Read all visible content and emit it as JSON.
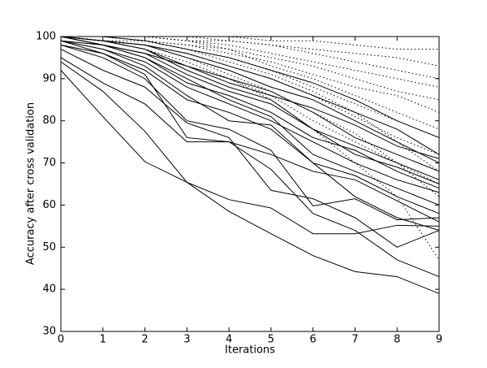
{
  "chart_data": {
    "type": "line",
    "xlabel": "Iterations",
    "ylabel": "Accuracy after cross validation",
    "x": [
      0,
      1,
      2,
      3,
      4,
      5,
      6,
      7,
      8,
      9
    ],
    "xlim": [
      0,
      9
    ],
    "xticks": [
      0,
      1,
      2,
      3,
      4,
      5,
      6,
      7,
      8,
      9
    ],
    "ylim": [
      30,
      100
    ],
    "yticks": [
      30,
      40,
      50,
      60,
      70,
      80,
      90,
      100
    ],
    "grid": false,
    "series": [
      {
        "color": "#000000",
        "linestyle": "solid",
        "values": [
          92,
          81,
          70.3,
          65.4,
          58.5,
          53.2,
          48,
          44.2,
          43,
          39
        ]
      },
      {
        "color": "#000000",
        "linestyle": "solid",
        "values": [
          94,
          87,
          77.5,
          65.4,
          61.3,
          59.3,
          53.2,
          53.2,
          55.2,
          55
        ]
      },
      {
        "color": "#000000",
        "linestyle": "solid",
        "values": [
          95,
          89,
          84,
          75,
          75,
          68.5,
          58,
          54,
          47,
          43
        ]
      },
      {
        "color": "#000000",
        "linestyle": "solid",
        "values": [
          97,
          92,
          88,
          79.5,
          76,
          63.5,
          61.5,
          57,
          50,
          54
        ]
      },
      {
        "color": "#000000",
        "linestyle": "solid",
        "values": [
          98,
          95,
          90,
          80,
          78,
          73,
          59.8,
          61.5,
          56.5,
          57
        ]
      },
      {
        "color": "#000000",
        "linestyle": "solid",
        "values": [
          99,
          96,
          91,
          76,
          75,
          72,
          68,
          66,
          61,
          56
        ]
      },
      {
        "color": "#000000",
        "linestyle": "solid",
        "values": [
          99,
          97,
          93,
          86,
          80,
          79,
          70,
          62,
          57,
          54
        ]
      },
      {
        "color": "#000000",
        "linestyle": "solid",
        "values": [
          100,
          98,
          95,
          90,
          85,
          81,
          72,
          68,
          64,
          60
        ]
      },
      {
        "color": "#000000",
        "linestyle": "solid",
        "values": [
          100,
          98,
          96,
          91,
          87,
          84,
          78,
          72,
          69,
          65
        ]
      },
      {
        "color": "#000000",
        "linestyle": "solid",
        "values": [
          100,
          99,
          97,
          93,
          90,
          87,
          82,
          76,
          72,
          68
        ]
      },
      {
        "color": "#000000",
        "linestyle": "solid",
        "values": [
          100,
          99,
          98,
          95,
          92,
          88,
          85,
          80,
          75,
          70
        ]
      },
      {
        "color": "#000000",
        "linestyle": "solid",
        "values": [
          100,
          99,
          97,
          92,
          88,
          85,
          78,
          74,
          70,
          66
        ]
      },
      {
        "color": "#000000",
        "linestyle": "solid",
        "values": [
          99,
          97,
          94,
          88,
          84,
          80,
          75,
          70,
          66,
          63
        ]
      },
      {
        "color": "#000000",
        "linestyle": "solid",
        "values": [
          100,
          99,
          98,
          96,
          93,
          90,
          86,
          82,
          78,
          72
        ]
      },
      {
        "color": "#000000",
        "linestyle": "solid",
        "values": [
          100,
          100,
          99,
          97,
          95,
          92,
          89,
          85,
          80,
          76
        ]
      },
      {
        "color": "#000000",
        "linestyle": "solid",
        "values": [
          98,
          96,
          92,
          85,
          82,
          78,
          70,
          67,
          62,
          58
        ]
      },
      {
        "color": "#000000",
        "linestyle": "solid",
        "values": [
          100,
          98,
          96,
          93,
          89,
          86,
          83,
          79,
          74,
          71
        ]
      },
      {
        "color": "#000000",
        "linestyle": "solid",
        "values": [
          99,
          98,
          95,
          89,
          86,
          82,
          76,
          73,
          68,
          64
        ]
      },
      {
        "color": "#000000",
        "linestyle": "dotted",
        "values": [
          100,
          100,
          100,
          100,
          99,
          98,
          97,
          96,
          95,
          93
        ]
      },
      {
        "color": "#000000",
        "linestyle": "dotted",
        "values": [
          100,
          100,
          100,
          99,
          98,
          96,
          94,
          92,
          90,
          88
        ]
      },
      {
        "color": "#000000",
        "linestyle": "dotted",
        "values": [
          100,
          100,
          99,
          98,
          96,
          94,
          91,
          88,
          86,
          82
        ]
      },
      {
        "color": "#000000",
        "linestyle": "dotted",
        "values": [
          100,
          100,
          100,
          99,
          97,
          95,
          93,
          90,
          87,
          85
        ]
      },
      {
        "color": "#000000",
        "linestyle": "dotted",
        "values": [
          100,
          99,
          99,
          97,
          95,
          92,
          88,
          84,
          80,
          76
        ]
      },
      {
        "color": "#000000",
        "linestyle": "dotted",
        "values": [
          100,
          100,
          99,
          98,
          97,
          93,
          90,
          86,
          82,
          78
        ]
      },
      {
        "color": "#000000",
        "linestyle": "dotted",
        "values": [
          100,
          99,
          98,
          96,
          93,
          90,
          86,
          81,
          76,
          72
        ]
      },
      {
        "color": "#000000",
        "linestyle": "dotted",
        "values": [
          100,
          100,
          100,
          100,
          100,
          99,
          99,
          98,
          97,
          97
        ]
      },
      {
        "color": "#000000",
        "linestyle": "dotted",
        "values": [
          99,
          98,
          96,
          93,
          90,
          86,
          80,
          75,
          70,
          65
        ]
      },
      {
        "color": "#000000",
        "linestyle": "dotted",
        "values": [
          100,
          99,
          97,
          94,
          90,
          85,
          78,
          70,
          62,
          47
        ]
      },
      {
        "color": "#000000",
        "linestyle": "dotted",
        "values": [
          100,
          100,
          99,
          97,
          94,
          91,
          87,
          82,
          75,
          68
        ]
      },
      {
        "color": "#000000",
        "linestyle": "dotted",
        "values": [
          100,
          99,
          98,
          95,
          91,
          87,
          82,
          77,
          70,
          62
        ]
      },
      {
        "color": "#000000",
        "linestyle": "dotted",
        "values": [
          100,
          100,
          100,
          99,
          99,
          98,
          96,
          94,
          92,
          90
        ]
      }
    ]
  }
}
